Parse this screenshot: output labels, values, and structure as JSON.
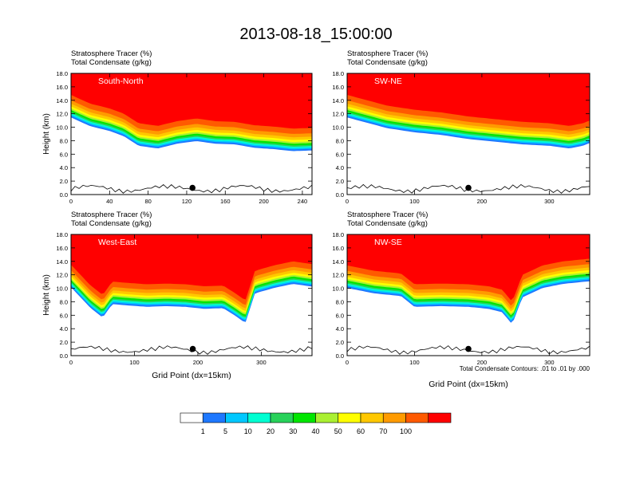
{
  "figure": {
    "title": "2013-08-18_15:00:00",
    "note": "Total Condensate Contours: .01 to .01 by .000"
  },
  "chart_data": [
    {
      "type": "heatmap",
      "label_line1": "Stratosphere Tracer   (%)",
      "label_line2": "Total Condensate   (g/kg)",
      "panel_label": "South-North",
      "xlabel": "",
      "ylabel": "Height (km)",
      "xlim": [
        0,
        250
      ],
      "ylim": [
        0,
        18
      ],
      "xticks": [
        0,
        40,
        80,
        120,
        160,
        200,
        240
      ],
      "yticks": [
        0.0,
        2.0,
        4.0,
        6.0,
        8.0,
        10.0,
        12.0,
        14.0,
        16.0,
        18.0
      ],
      "dot": {
        "x": 126,
        "y": 1.0
      },
      "profile": [
        [
          0,
          14.8
        ],
        [
          20,
          13.5
        ],
        [
          40,
          12.8
        ],
        [
          55,
          12.0
        ],
        [
          70,
          10.6
        ],
        [
          90,
          10.2
        ],
        [
          110,
          10.9
        ],
        [
          130,
          11.3
        ],
        [
          150,
          10.9
        ],
        [
          170,
          10.8
        ],
        [
          190,
          10.3
        ],
        [
          210,
          10.1
        ],
        [
          230,
          9.8
        ],
        [
          250,
          9.9
        ]
      ]
    },
    {
      "type": "heatmap",
      "label_line1": "Stratosphere Tracer   (%)",
      "label_line2": "Total Condensate   (g/kg)",
      "panel_label": "SW-NE",
      "xlabel": "",
      "ylabel": "",
      "xlim": [
        0,
        360
      ],
      "ylim": [
        0,
        18
      ],
      "xticks": [
        0,
        100,
        200,
        300
      ],
      "yticks": [
        0.0,
        2.0,
        4.0,
        6.0,
        8.0,
        10.0,
        12.0,
        14.0,
        16.0,
        18.0
      ],
      "dot": {
        "x": 180,
        "y": 1.0
      },
      "profile": [
        [
          0,
          14.8
        ],
        [
          30,
          14.0
        ],
        [
          60,
          13.2
        ],
        [
          100,
          12.6
        ],
        [
          140,
          12.2
        ],
        [
          180,
          11.6
        ],
        [
          220,
          11.2
        ],
        [
          260,
          10.8
        ],
        [
          300,
          10.6
        ],
        [
          330,
          10.2
        ],
        [
          350,
          10.6
        ],
        [
          360,
          11.0
        ]
      ]
    },
    {
      "type": "heatmap",
      "label_line1": "Stratosphere Tracer   (%)",
      "label_line2": "Total Condensate   (g/kg)",
      "panel_label": "West-East",
      "xlabel": "Grid Point (dx=15km)",
      "ylabel": "Height (km)",
      "xlim": [
        0,
        380
      ],
      "ylim": [
        0,
        18
      ],
      "xticks": [
        0,
        100,
        200,
        300
      ],
      "yticks": [
        0.0,
        2.0,
        4.0,
        6.0,
        8.0,
        10.0,
        12.0,
        14.0,
        16.0,
        18.0
      ],
      "dot": {
        "x": 192,
        "y": 1.0
      },
      "profile": [
        [
          0,
          13.5
        ],
        [
          30,
          10.5
        ],
        [
          50,
          9.0
        ],
        [
          65,
          11.0
        ],
        [
          90,
          10.8
        ],
        [
          120,
          10.6
        ],
        [
          150,
          10.7
        ],
        [
          180,
          10.6
        ],
        [
          210,
          10.3
        ],
        [
          240,
          10.4
        ],
        [
          260,
          9.2
        ],
        [
          275,
          8.2
        ],
        [
          290,
          12.6
        ],
        [
          320,
          13.4
        ],
        [
          350,
          14.0
        ],
        [
          380,
          13.6
        ]
      ]
    },
    {
      "type": "heatmap",
      "label_line1": "Stratosphere Tracer   (%)",
      "label_line2": "Total Condensate   (g/kg)",
      "panel_label": "NW-SE",
      "xlabel": "Grid Point (dx=15km)",
      "ylabel": "",
      "xlim": [
        0,
        360
      ],
      "ylim": [
        0,
        18
      ],
      "xticks": [
        0,
        100,
        200,
        300
      ],
      "yticks": [
        0.0,
        2.0,
        4.0,
        6.0,
        8.0,
        10.0,
        12.0,
        14.0,
        16.0,
        18.0
      ],
      "dot": {
        "x": 180,
        "y": 1.0
      },
      "profile": [
        [
          0,
          13.4
        ],
        [
          40,
          12.6
        ],
        [
          80,
          12.2
        ],
        [
          100,
          10.6
        ],
        [
          140,
          10.7
        ],
        [
          180,
          10.6
        ],
        [
          210,
          10.3
        ],
        [
          230,
          9.8
        ],
        [
          245,
          8.0
        ],
        [
          260,
          12.0
        ],
        [
          290,
          13.4
        ],
        [
          320,
          14.0
        ],
        [
          360,
          14.4
        ]
      ]
    }
  ],
  "colorbar": {
    "labels": [
      "1",
      "5",
      "10",
      "20",
      "30",
      "40",
      "50",
      "60",
      "70",
      "100"
    ],
    "colors": [
      "#ffffff",
      "#1e78ff",
      "#00c8ff",
      "#00ffd2",
      "#28d25a",
      "#00e600",
      "#aaf032",
      "#ffff00",
      "#ffc800",
      "#ff9b00",
      "#ff5a00",
      "#ff0000"
    ]
  }
}
